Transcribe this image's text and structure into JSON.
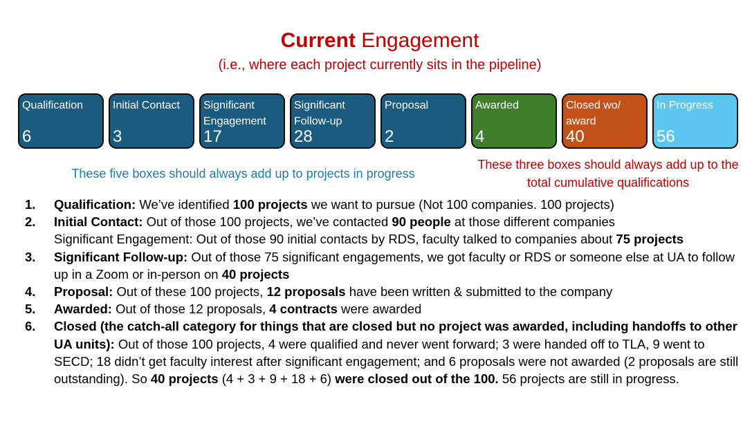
{
  "title": {
    "bold": "Current",
    "rest": " Engagement"
  },
  "subtitle": "(i.e., where each project currently sits in the pipeline)",
  "stages": [
    {
      "label": "Qualification",
      "count": "6",
      "color": "#1a5b7f"
    },
    {
      "label": "Initial Contact",
      "count": "3",
      "color": "#1a5b7f"
    },
    {
      "label": "Significant Engagement",
      "count": "17",
      "color": "#1a5b7f"
    },
    {
      "label": "Significant Follow-up",
      "count": "28",
      "color": "#1a5b7f"
    },
    {
      "label": "Proposal",
      "count": "2",
      "color": "#1a5b7f"
    },
    {
      "label": "Awarded",
      "count": "4",
      "color": "#3f7f2b"
    },
    {
      "label": "Closed wo/ award",
      "count": "40",
      "color": "#c3511a"
    },
    {
      "label": "In Progress",
      "count": "56",
      "color": "#5cc6ef"
    }
  ],
  "notes": {
    "left": "These five boxes should always add up to projects in progress",
    "right": "These three boxes should always add up to the total cumulative qualifications"
  },
  "items": [
    {
      "number": "1.",
      "parts": [
        {
          "text": "Qualification:",
          "bold": true
        },
        {
          "text": " We’ve identified ",
          "bold": false
        },
        {
          "text": "100 projects",
          "bold": true
        },
        {
          "text": " we want to pursue (Not 100 companies. 100 projects)",
          "bold": false
        }
      ]
    },
    {
      "number": "2.",
      "parts": [
        {
          "text": "Initial Contact:",
          "bold": true
        },
        {
          "text": " Out of those 100 projects, we’ve contacted ",
          "bold": false
        },
        {
          "text": "90 people",
          "bold": true
        },
        {
          "text": " at those different companies",
          "bold": false
        }
      ]
    },
    {
      "number": "",
      "parts": [
        {
          "text": "Significant Engagement: Out of those 90 initial contacts by RDS, faculty talked to companies about ",
          "bold": false
        },
        {
          "text": "75 projects",
          "bold": true
        }
      ]
    },
    {
      "number": "3.",
      "parts": [
        {
          "text": "Significant Follow-up:",
          "bold": true
        },
        {
          "text": " Out of those 75 significant engagements, we got faculty or RDS or someone else at UA to follow up in a Zoom or in-person on ",
          "bold": false
        },
        {
          "text": "40 projects",
          "bold": true
        }
      ]
    },
    {
      "number": "4.",
      "parts": [
        {
          "text": "Proposal:",
          "bold": true
        },
        {
          "text": " Out of these 100 projects, ",
          "bold": false
        },
        {
          "text": "12 proposals",
          "bold": true
        },
        {
          "text": " have been written & submitted to the company",
          "bold": false
        }
      ]
    },
    {
      "number": "5.",
      "parts": [
        {
          "text": "Awarded:",
          "bold": true
        },
        {
          "text": " Out of those 12 proposals, ",
          "bold": false
        },
        {
          "text": "4 contracts",
          "bold": true
        },
        {
          "text": " were awarded",
          "bold": false
        }
      ]
    },
    {
      "number": "6.",
      "parts": [
        {
          "text": "Closed (the catch-all category for things that are closed but no project was awarded, including handoffs to other UA units):",
          "bold": true
        },
        {
          "text": " Out of those 100 projects, 4 were qualified and never went forward; 3 were handed off to TLA, 9 went to SECD; 18 didn’t get faculty interest after significant engagement; and 6 proposals were not awarded (2 proposals are still outstanding). So ",
          "bold": false
        },
        {
          "text": "40 projects",
          "bold": true
        },
        {
          "text": " (4 + 3 + 9 + 18 + 6) ",
          "bold": false
        },
        {
          "text": "were closed out of the 100.",
          "bold": true
        },
        {
          "text": " 56 projects are still in progress.",
          "bold": false
        }
      ]
    }
  ]
}
